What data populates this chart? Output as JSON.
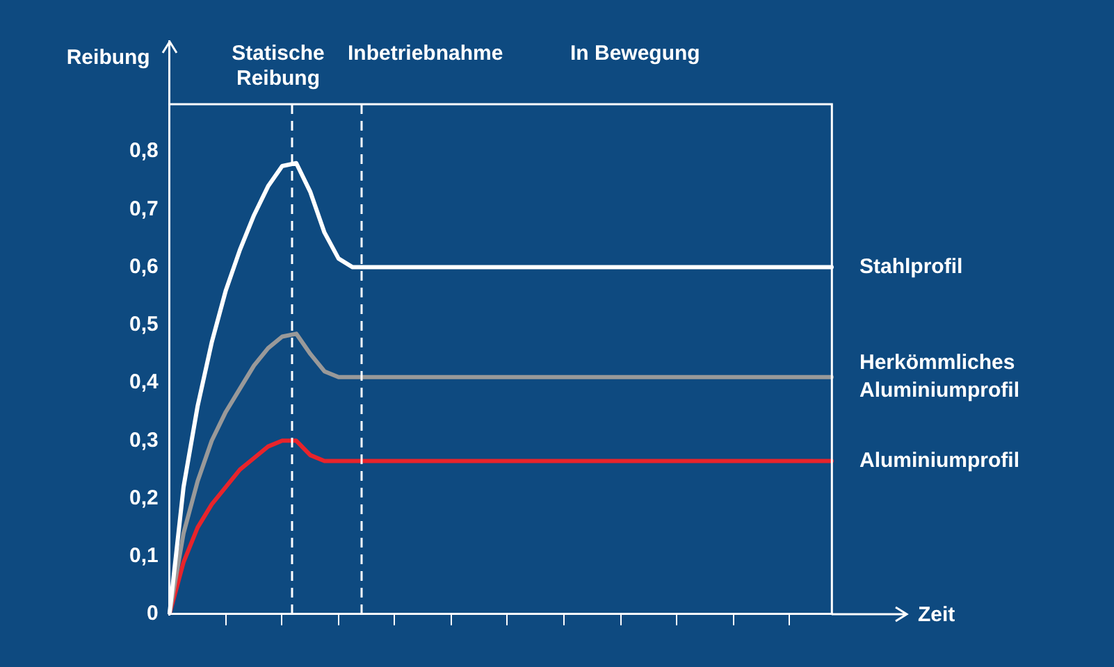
{
  "chart_data": {
    "type": "line",
    "xlabel": "Zeit",
    "ylabel": "Reibung",
    "annotations": [
      "Statische Reibung",
      "Inbetriebnahme",
      "In Bewegung"
    ],
    "categories": [
      null,
      null,
      null,
      null,
      null,
      null,
      null,
      null,
      null,
      null,
      null,
      null,
      null,
      null,
      null,
      null,
      null,
      null,
      null,
      null,
      null,
      null,
      null,
      null,
      null,
      null,
      null,
      null,
      null,
      null,
      null,
      null,
      null,
      null,
      null,
      null,
      null,
      null,
      null,
      null,
      null,
      null,
      null,
      null,
      null,
      null,
      null,
      null
    ],
    "ylim": [
      0,
      0.99
    ],
    "yticks": [
      0,
      {
        "value": 0.1,
        "label": "0,1"
      },
      {
        "value": 0.2,
        "label": "0,2"
      },
      {
        "value": 0.3,
        "label": "0,3"
      },
      {
        "value": 0.4,
        "label": "0,4"
      },
      {
        "value": 0.5,
        "label": "0,5"
      },
      {
        "value": 0.6,
        "label": "0,6"
      },
      {
        "value": 0.7,
        "label": "0,7"
      },
      {
        "value": 0.8,
        "label": "0,8"
      }
    ],
    "tick_labels": "y",
    "grid": false,
    "legend": false,
    "marker": "none",
    "line_style": "solid",
    "series": [
      {
        "name": "Stahlprofil",
        "color": "#ffffff",
        "values": [
          0,
          0.22,
          0.36,
          0.47,
          0.56,
          0.63,
          0.69,
          0.74,
          0.775,
          0.78,
          0.73,
          0.66,
          0.615,
          0.6,
          0.6,
          0.6,
          0.6,
          0.6,
          0.6,
          0.6,
          0.6,
          0.6,
          0.6,
          0.6,
          0.6,
          0.6,
          0.6,
          0.6,
          0.6,
          0.6,
          0.6,
          0.6,
          0.6,
          0.6,
          0.6,
          0.6,
          0.6,
          0.6,
          0.6,
          0.6,
          0.6,
          0.6,
          0.6,
          0.6,
          0.6,
          0.6,
          0.6,
          0.6
        ]
      },
      {
        "name": "Herkömmliches Aluminiumprofil",
        "color": "#999999",
        "values": [
          0,
          0.14,
          0.23,
          0.3,
          0.35,
          0.39,
          0.43,
          0.46,
          0.48,
          0.485,
          0.45,
          0.42,
          0.41,
          0.41,
          0.41,
          0.41,
          0.41,
          0.41,
          0.41,
          0.41,
          0.41,
          0.41,
          0.41,
          0.41,
          0.41,
          0.41,
          0.41,
          0.41,
          0.41,
          0.41,
          0.41,
          0.41,
          0.41,
          0.41,
          0.41,
          0.41,
          0.41,
          0.41,
          0.41,
          0.41,
          0.41,
          0.41,
          0.41,
          0.41,
          0.41,
          0.41,
          0.41,
          0.41
        ]
      },
      {
        "name": "Aluminiumprofil",
        "color": "#e8242b",
        "values": [
          0,
          0.09,
          0.15,
          0.19,
          0.22,
          0.25,
          0.27,
          0.29,
          0.3,
          0.3,
          0.275,
          0.265,
          0.265,
          0.265,
          0.265,
          0.265,
          0.265,
          0.265,
          0.265,
          0.265,
          0.265,
          0.265,
          0.265,
          0.265,
          0.265,
          0.265,
          0.265,
          0.265,
          0.265,
          0.265,
          0.265,
          0.265,
          0.265,
          0.265,
          0.265,
          0.265,
          0.265,
          0.265,
          0.265,
          0.265,
          0.265,
          0.265,
          0.265,
          0.265,
          0.265,
          0.265,
          0.265,
          0.265
        ]
      }
    ]
  }
}
